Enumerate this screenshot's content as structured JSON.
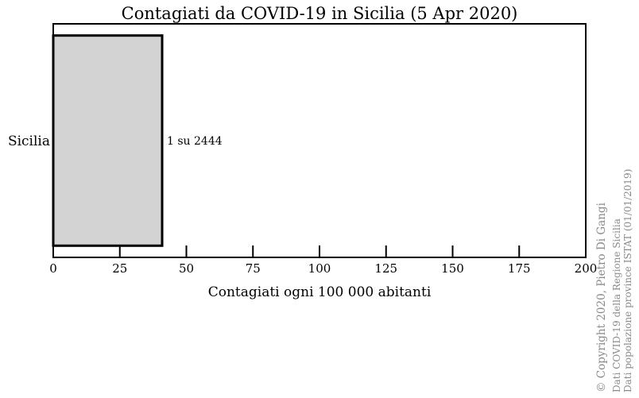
{
  "chart_data": {
    "type": "bar",
    "orientation": "horizontal",
    "title": "Contagiati da COVID-19 in Sicilia (5 Apr 2020)",
    "categories": [
      "Sicilia"
    ],
    "values": [
      40.9
    ],
    "data_labels": [
      "1 su 2444"
    ],
    "xlabel": "Contagiati ogni 100 000 abitanti",
    "ylabel": "",
    "xlim": [
      0,
      200
    ],
    "xticks": [
      0,
      25,
      50,
      75,
      100,
      125,
      150,
      175,
      200
    ],
    "grid": false,
    "bar_color": "#d3d3d3",
    "bar_edge_color": "#000000"
  },
  "credits": {
    "copyright": "© Copyright 2020, Pietro Di Gangi",
    "source_covid": "Dati COVID-19 della Regione Sicilia",
    "source_population": "Dati popolazione province ISTAT (01/01/2019)"
  }
}
